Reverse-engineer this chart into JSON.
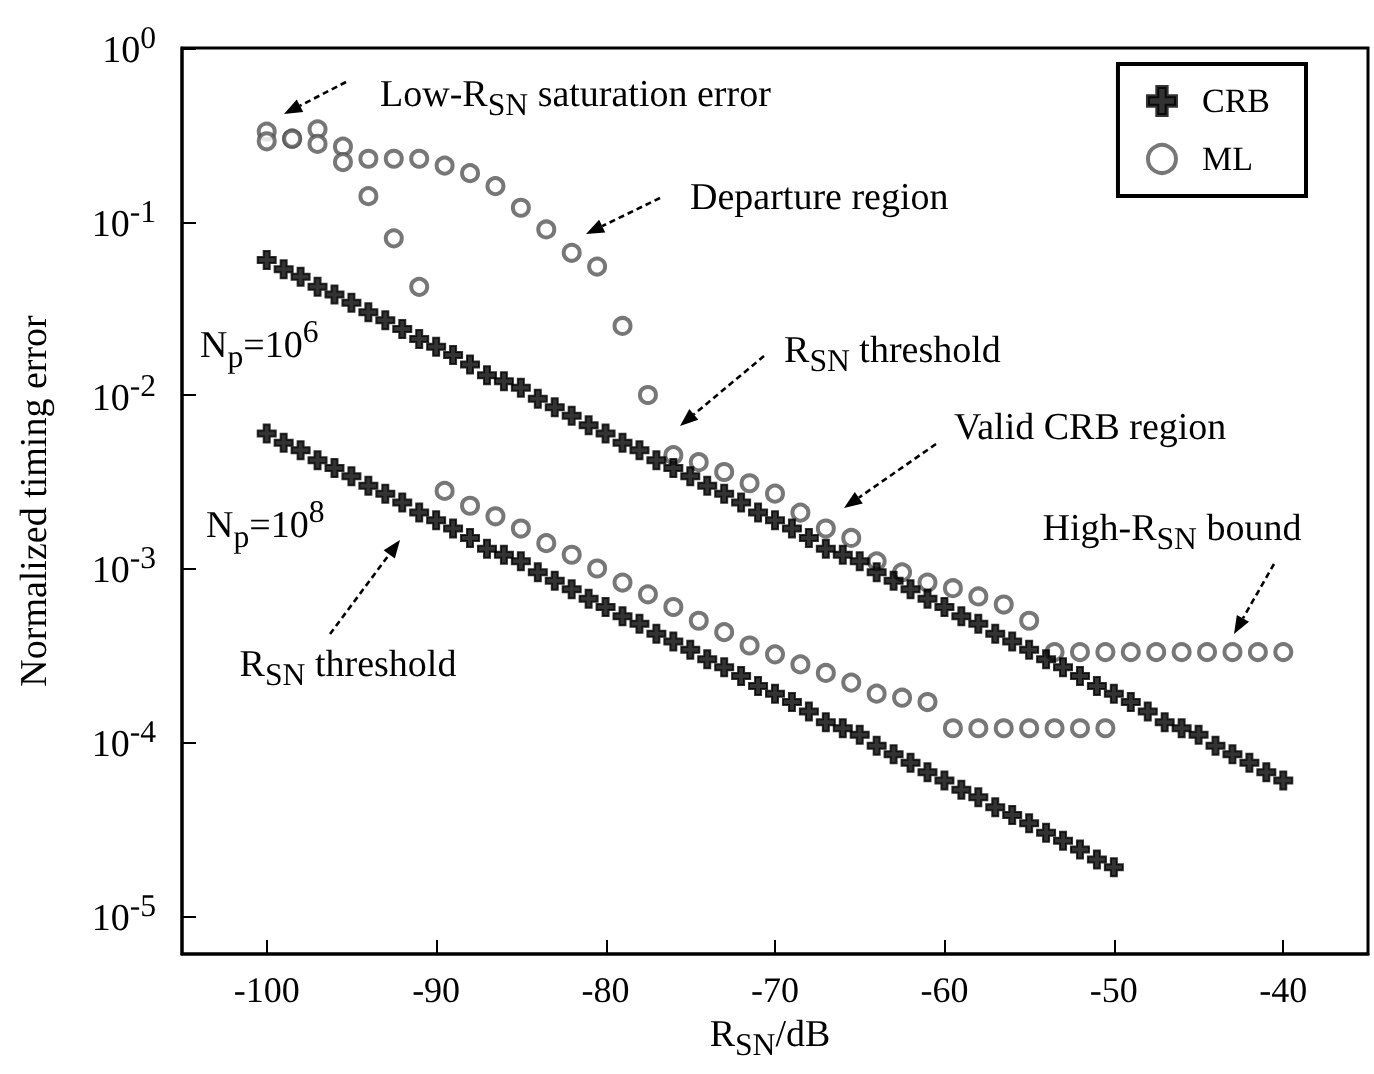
{
  "chart_data": {
    "type": "scatter",
    "xlabel": "R$_{SN}$/dB",
    "ylabel": "Normalized timing error",
    "log": "y",
    "legend": "top right",
    "grid": false,
    "xlim": [
      -105,
      -35
    ],
    "xticks": [
      -100,
      -90,
      -80,
      -70,
      -60,
      -50,
      -40
    ],
    "ylim": [
      6e-06,
      1
    ],
    "yticks": [
      {
        "value": 1,
        "label": "10$^{0}$"
      },
      {
        "value": 0.1,
        "label": "10$^{-1}$"
      },
      {
        "value": 0.01,
        "label": "10$^{-2}$"
      },
      {
        "value": 0.001,
        "label": "10$^{-3}$"
      },
      {
        "value": 0.0001,
        "label": "10$^{-4}$"
      },
      {
        "value": 1e-05,
        "label": "10$^{-5}$"
      }
    ],
    "series": [
      {
        "name": "CRB",
        "color": "#000000",
        "marker": "cross",
        "x": [
          -100,
          -99,
          -98,
          -97,
          -96,
          -95,
          -94,
          -93,
          -92,
          -91,
          -90,
          -89,
          -88,
          -87,
          -86,
          -85,
          -84,
          -83,
          -82,
          -81,
          -80,
          -79,
          -78,
          -77,
          -76,
          -75,
          -74,
          -73,
          -72,
          -71,
          -70,
          -69,
          -68,
          -67,
          -66,
          -65,
          -64,
          -63,
          -62,
          -61,
          -60,
          -59,
          -58,
          -57,
          -56,
          -55,
          -54,
          -53,
          -52,
          -51,
          -50,
          -49,
          -48,
          -47,
          -46,
          -45,
          -44,
          -43,
          -42,
          -41,
          -40
        ],
        "values": [
          0.06,
          0.053,
          0.048,
          0.042,
          0.038,
          0.034,
          0.03,
          0.027,
          0.024,
          0.021,
          0.019,
          0.017,
          0.015,
          0.013,
          0.012,
          0.011,
          0.0095,
          0.0085,
          0.0076,
          0.0067,
          0.006,
          0.0053,
          0.0048,
          0.0042,
          0.0038,
          0.0034,
          0.003,
          0.0027,
          0.0024,
          0.0021,
          0.0019,
          0.0017,
          0.0015,
          0.0013,
          0.0012,
          0.0011,
          0.00095,
          0.00085,
          0.00076,
          0.00067,
          0.0006,
          0.00053,
          0.00048,
          0.00042,
          0.00038,
          0.00034,
          0.0003,
          0.00027,
          0.00024,
          0.00021,
          0.00019,
          0.00017,
          0.00015,
          0.00013,
          0.00012,
          0.00011,
          9.5e-05,
          8.5e-05,
          7.6e-05,
          6.7e-05,
          6e-05
        ]
      },
      {
        "name": "ML",
        "color": "#555555",
        "marker": "circle",
        "x": [
          -100,
          -98.5,
          -97,
          -95.5,
          -94,
          -92.5,
          -91,
          -89.5,
          -88,
          -86.5,
          -85,
          -83.5,
          -82,
          -80.5,
          -79,
          -77.5,
          -76,
          -74.5,
          -73,
          -71.5,
          -70,
          -68.5,
          -67,
          -65.5,
          -64,
          -62.5,
          -61,
          -59.5,
          -58,
          -56.5,
          -55,
          -53.5,
          -52,
          -50.5,
          -49,
          -47.5,
          -46,
          -44.5,
          -43,
          -41.5,
          -40
        ],
        "values": [
          0.33,
          0.3,
          0.34,
          0.27,
          0.23,
          0.23,
          0.23,
          0.21,
          0.19,
          0.16,
          0.12,
          0.09,
          0.066,
          0.055,
          0.025,
          0.01,
          0.0045,
          0.0041,
          0.0036,
          0.0031,
          0.0027,
          0.0021,
          0.0017,
          0.0015,
          0.0011,
          0.00095,
          0.00083,
          0.00077,
          0.00069,
          0.00062,
          0.0005,
          0.00033,
          0.00033,
          0.00033,
          0.00033,
          0.00033,
          0.00033,
          0.00033,
          0.00033,
          0.00033,
          0.00033
        ]
      },
      {
        "color": "#000000",
        "marker": "cross",
        "x": [
          -100,
          -99,
          -98,
          -97,
          -96,
          -95,
          -94,
          -93,
          -92,
          -91,
          -90,
          -89,
          -88,
          -87,
          -86,
          -85,
          -84,
          -83,
          -82,
          -81,
          -80,
          -79,
          -78,
          -77,
          -76,
          -75,
          -74,
          -73,
          -72,
          -71,
          -70,
          -69,
          -68,
          -67,
          -66,
          -65,
          -64,
          -63,
          -62,
          -61,
          -60,
          -59,
          -58,
          -57,
          -56,
          -55,
          -54,
          -53,
          -52,
          -51,
          -50
        ],
        "values": [
          0.006,
          0.0053,
          0.0048,
          0.0042,
          0.0038,
          0.0034,
          0.003,
          0.0027,
          0.0024,
          0.0021,
          0.0019,
          0.0017,
          0.0015,
          0.0013,
          0.0012,
          0.0011,
          0.00095,
          0.00085,
          0.00076,
          0.00067,
          0.0006,
          0.00053,
          0.00048,
          0.00042,
          0.00038,
          0.00034,
          0.0003,
          0.00027,
          0.00024,
          0.00021,
          0.00019,
          0.00017,
          0.00015,
          0.00013,
          0.00012,
          0.00011,
          9.5e-05,
          8.5e-05,
          7.6e-05,
          6.7e-05,
          6e-05,
          5.3e-05,
          4.8e-05,
          4.2e-05,
          3.8e-05,
          3.4e-05,
          3e-05,
          2.7e-05,
          2.4e-05,
          2.1e-05,
          1.9e-05
        ]
      },
      {
        "color": "#555555",
        "marker": "circle",
        "x": [
          -100,
          -98.5,
          -97,
          -95.5,
          -94,
          -92.5,
          -91,
          -89.5,
          -88,
          -86.5,
          -85,
          -83.5,
          -82,
          -80.5,
          -79,
          -77.5,
          -76,
          -74.5,
          -73,
          -71.5,
          -70,
          -68.5,
          -67,
          -65.5,
          -64,
          -62.5,
          -61,
          -59.5,
          -58,
          -56.5,
          -55,
          -53.5,
          -52,
          -50.5
        ],
        "values": [
          0.29,
          0.3,
          0.28,
          0.22,
          0.14,
          0.08,
          0.042,
          0.0028,
          0.0023,
          0.002,
          0.0017,
          0.0014,
          0.0012,
          0.001,
          0.00083,
          0.00071,
          0.0006,
          0.0005,
          0.00043,
          0.00036,
          0.00032,
          0.00028,
          0.00025,
          0.00022,
          0.00019,
          0.00018,
          0.00017,
          0.00012,
          0.00012,
          0.00012,
          0.00012,
          0.00012,
          0.00012,
          0.00012
        ]
      }
    ],
    "annotations": [
      "Low-R$_{SN}$ saturation error",
      "Departure region",
      "R$_{SN}$ threshold",
      "Valid CRB region",
      "High-R$_{SN}$ bound",
      "R$_{SN}$ threshold",
      "N$_{p}$=10$^{6}$",
      "N$_{p}$=10$^{8}$"
    ]
  }
}
